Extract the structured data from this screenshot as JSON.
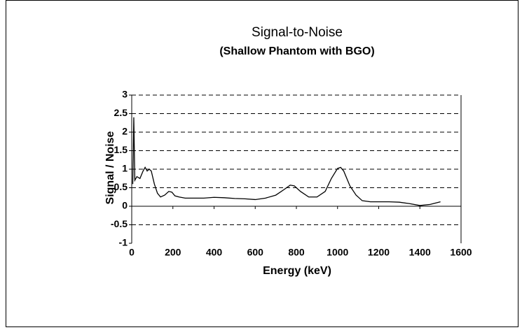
{
  "chart_data": {
    "type": "line",
    "title": "Signal-to-Noise",
    "subtitle": "(Shallow Phantom with BGO)",
    "x_label": "Energy (keV)",
    "y_label": "Signal / Noise",
    "xlim": [
      0,
      1600
    ],
    "xticks": [
      0,
      200,
      400,
      600,
      800,
      1000,
      1200,
      1400,
      1600
    ],
    "ylim": [
      -1,
      3
    ],
    "yticks": [
      -1,
      -0.5,
      0,
      0.5,
      1,
      1.5,
      2,
      2.5,
      3
    ],
    "grid": true,
    "series": [
      {
        "color": "#000000",
        "x": [
          5,
          10,
          15,
          25,
          40,
          55,
          65,
          75,
          85,
          95,
          110,
          125,
          140,
          160,
          180,
          195,
          210,
          230,
          260,
          300,
          350,
          400,
          450,
          500,
          550,
          600,
          650,
          700,
          740,
          770,
          790,
          820,
          860,
          900,
          940,
          970,
          1000,
          1015,
          1030,
          1060,
          1090,
          1120,
          1160,
          1200,
          1250,
          1300,
          1350,
          1400,
          1450,
          1500
        ],
        "values": [
          0.6,
          2.4,
          0.7,
          0.8,
          0.75,
          0.95,
          1.05,
          0.95,
          1.0,
          0.95,
          0.6,
          0.35,
          0.25,
          0.3,
          0.4,
          0.38,
          0.28,
          0.25,
          0.22,
          0.22,
          0.22,
          0.24,
          0.23,
          0.21,
          0.2,
          0.18,
          0.22,
          0.3,
          0.45,
          0.57,
          0.55,
          0.4,
          0.25,
          0.25,
          0.4,
          0.75,
          1.02,
          1.05,
          0.95,
          0.55,
          0.3,
          0.15,
          0.12,
          0.12,
          0.12,
          0.11,
          0.07,
          0.02,
          0.05,
          0.12
        ]
      }
    ]
  }
}
